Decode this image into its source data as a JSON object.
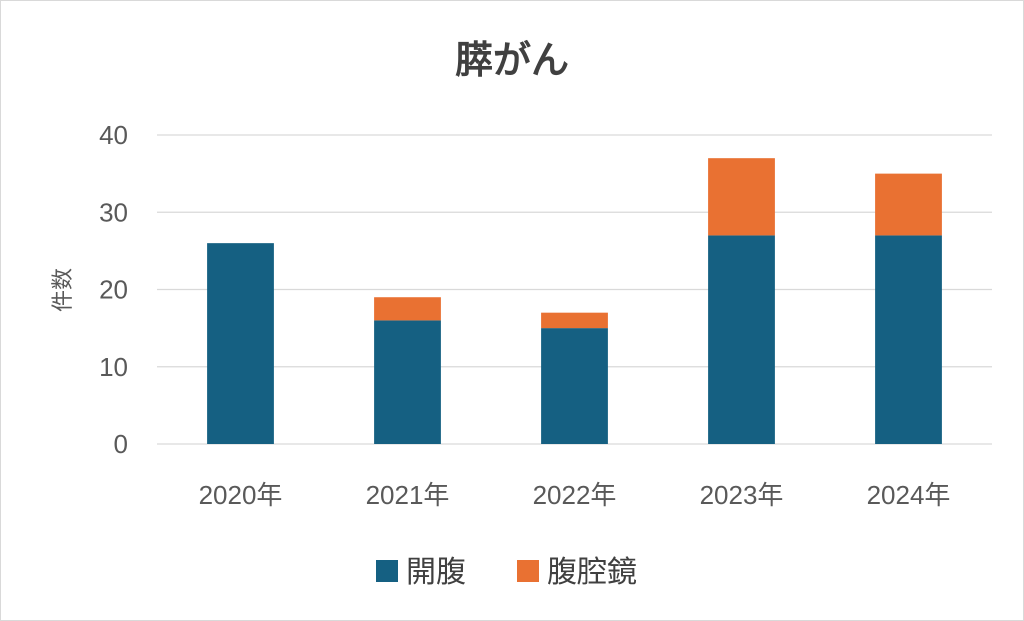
{
  "chart_data": {
    "type": "bar",
    "stacked": true,
    "title": "膵がん",
    "xlabel": "",
    "ylabel": "件数",
    "categories": [
      "2020年",
      "2021年",
      "2022年",
      "2023年",
      "2024年"
    ],
    "series": [
      {
        "name": "開腹",
        "color": "#156082",
        "values": [
          26,
          16,
          15,
          27,
          27
        ]
      },
      {
        "name": "腹腔鏡",
        "color": "#E97132",
        "values": [
          0,
          3,
          2,
          10,
          8
        ]
      }
    ],
    "ylim": [
      0,
      40
    ],
    "yticks": [
      0,
      10,
      20,
      30,
      40
    ],
    "grid": true,
    "legend": "bottom"
  }
}
